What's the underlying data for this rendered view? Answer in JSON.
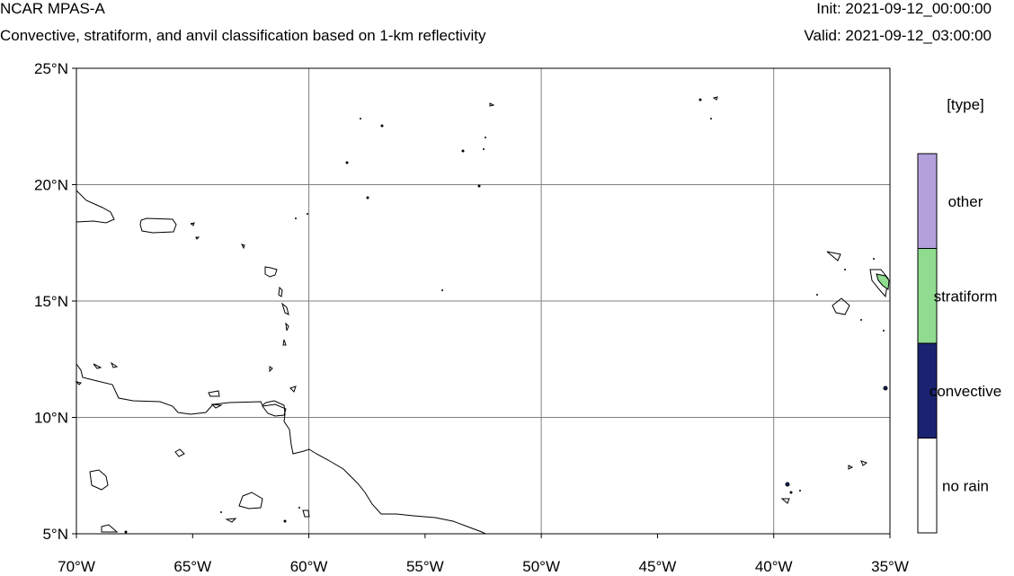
{
  "header": {
    "title": "NCAR MPAS-A",
    "subtitle": "Convective, stratiform, and anvil classification based on 1-km reflectivity",
    "init": "Init: 2021-09-12_00:00:00",
    "valid": "Valid: 2021-09-12_03:00:00"
  },
  "map": {
    "lat_labels": [
      "25°N",
      "20°N",
      "15°N",
      "10°N",
      "5°N"
    ],
    "lon_labels": [
      "70°W",
      "65°W",
      "60°W",
      "55°W",
      "50°W",
      "45°W",
      "40°W",
      "35°W"
    ],
    "lon_range": [
      -70,
      -35
    ],
    "lat_range": [
      5,
      25
    ]
  },
  "legend": {
    "title": "[type]",
    "items": [
      {
        "label": "other",
        "color": "#b3a1dc"
      },
      {
        "label": "stratiform",
        "color": "#8fdc90"
      },
      {
        "label": "convective",
        "color": "#1a2370"
      },
      {
        "label": "no rain",
        "color": "#ffffff"
      }
    ]
  },
  "colors": {
    "gridline": "#808080",
    "coastline": "#000000"
  }
}
